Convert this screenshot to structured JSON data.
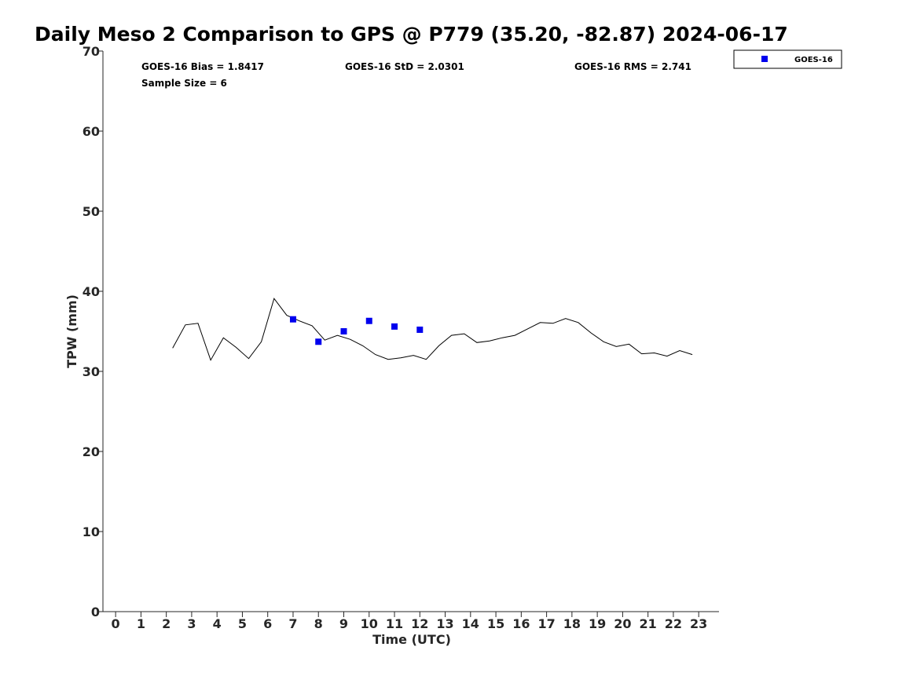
{
  "chart_data": {
    "type": "line",
    "title": "Daily Meso 2 Comparison to GPS @ P779 (35.20, -82.87) 2024-06-17",
    "xlabel": "Time (UTC)",
    "ylabel": "TPW (mm)",
    "xlim": [
      -0.5,
      23.8
    ],
    "ylim": [
      0,
      70
    ],
    "xticks": [
      0,
      1,
      2,
      3,
      4,
      5,
      6,
      7,
      8,
      9,
      10,
      11,
      12,
      13,
      14,
      15,
      16,
      17,
      18,
      19,
      20,
      21,
      22,
      23
    ],
    "yticks": [
      0,
      10,
      20,
      30,
      40,
      50,
      60,
      70
    ],
    "grid": false,
    "legend_position": "top-right, outside plot",
    "stats": {
      "bias": "GOES-16 Bias = 1.8417",
      "std": "GOES-16 StD = 2.0301",
      "rms": "GOES-16 RMS = 2.741",
      "sample": "Sample Size = 6"
    },
    "series": [
      {
        "kind": "line",
        "color": "#000000",
        "x": [
          2.25,
          2.75,
          3.25,
          3.75,
          4.25,
          4.75,
          5.25,
          5.75,
          6.25,
          6.75,
          7.25,
          7.75,
          8.25,
          8.75,
          9.25,
          9.75,
          10.25,
          10.75,
          11.25,
          11.75,
          12.25,
          12.75,
          13.25,
          13.75,
          14.25,
          14.75,
          15.25,
          15.75,
          16.25,
          16.75,
          17.25,
          17.75,
          18.25,
          18.75,
          19.25,
          19.75,
          20.25,
          20.75,
          21.25,
          21.75,
          22.25,
          22.75
        ],
        "y": [
          32.9,
          35.8,
          36.0,
          31.4,
          34.2,
          33.0,
          31.6,
          33.7,
          39.1,
          37.0,
          36.3,
          35.7,
          33.9,
          34.5,
          34.0,
          33.2,
          32.1,
          31.5,
          31.7,
          32.0,
          31.5,
          33.2,
          34.5,
          34.7,
          33.6,
          33.8,
          34.2,
          34.5,
          35.3,
          36.1,
          36.0,
          36.6,
          36.1,
          34.8,
          33.7,
          33.1,
          33.4,
          32.2,
          32.3,
          31.9,
          32.6,
          32.1
        ]
      },
      {
        "kind": "scatter",
        "name": "GOES-16",
        "color": "#0000ee",
        "x": [
          7,
          8,
          9,
          10,
          11,
          12
        ],
        "y": [
          36.5,
          33.7,
          35.0,
          36.3,
          35.6,
          35.2
        ]
      }
    ]
  }
}
